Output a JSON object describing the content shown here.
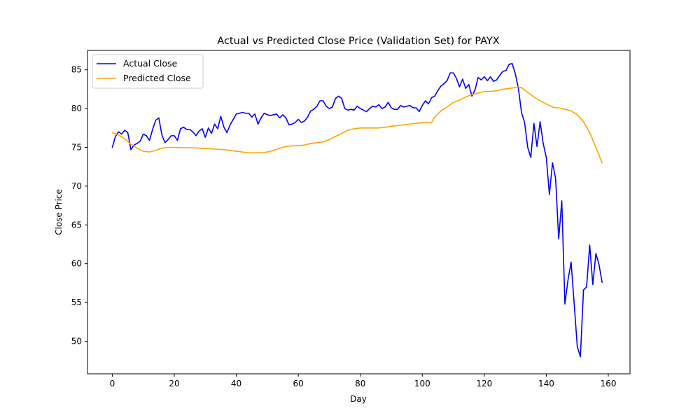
{
  "chart_data": {
    "type": "line",
    "title": "Actual vs Predicted Close Price (Validation Set) for PAYX",
    "xlabel": "Day",
    "ylabel": "Close Price",
    "xlim": [
      -8,
      167
    ],
    "ylim": [
      45.8,
      87.5
    ],
    "xticks": [
      0,
      20,
      40,
      60,
      80,
      100,
      120,
      140,
      160
    ],
    "yticks": [
      50,
      55,
      60,
      65,
      70,
      75,
      80,
      85
    ],
    "grid": false,
    "legend_position": "upper left",
    "series": [
      {
        "name": "Actual Close",
        "color": "#0000ff",
        "x": [
          0,
          1,
          2,
          3,
          4,
          5,
          6,
          7,
          8,
          9,
          10,
          11,
          12,
          13,
          14,
          15,
          16,
          17,
          18,
          19,
          20,
          21,
          22,
          23,
          24,
          25,
          26,
          27,
          28,
          29,
          30,
          31,
          32,
          33,
          34,
          35,
          36,
          37,
          38,
          39,
          40,
          41,
          42,
          43,
          44,
          45,
          46,
          47,
          48,
          49,
          50,
          51,
          52,
          53,
          54,
          55,
          56,
          57,
          58,
          59,
          60,
          61,
          62,
          63,
          64,
          65,
          66,
          67,
          68,
          69,
          70,
          71,
          72,
          73,
          74,
          75,
          76,
          77,
          78,
          79,
          80,
          81,
          82,
          83,
          84,
          85,
          86,
          87,
          88,
          89,
          90,
          91,
          92,
          93,
          94,
          95,
          96,
          97,
          98,
          99,
          100,
          101,
          102,
          103,
          104,
          105,
          106,
          107,
          108,
          109,
          110,
          111,
          112,
          113,
          114,
          115,
          116,
          117,
          118,
          119,
          120,
          121,
          122,
          123,
          124,
          125,
          126,
          127,
          128,
          129,
          130,
          131,
          132,
          133,
          134,
          135,
          136,
          137,
          138,
          139,
          140,
          141,
          142,
          143,
          144,
          145,
          146,
          147,
          148,
          149,
          150,
          151,
          152,
          153,
          154,
          155,
          156,
          157,
          158
        ],
        "y": [
          75.0,
          76.4,
          77.0,
          76.7,
          77.2,
          76.9,
          74.7,
          75.3,
          75.5,
          75.8,
          76.7,
          76.5,
          75.9,
          77.3,
          78.5,
          78.8,
          76.6,
          75.6,
          76.0,
          76.5,
          76.5,
          75.9,
          77.4,
          77.6,
          77.3,
          77.3,
          77.0,
          76.5,
          77.1,
          77.4,
          76.3,
          77.5,
          76.8,
          78.0,
          77.4,
          79.0,
          77.6,
          76.9,
          77.9,
          78.6,
          79.3,
          79.4,
          79.5,
          79.4,
          79.4,
          78.9,
          79.3,
          78.0,
          78.8,
          79.4,
          79.2,
          79.1,
          79.2,
          79.3,
          78.8,
          79.2,
          78.8,
          77.9,
          78.0,
          78.2,
          78.6,
          78.2,
          78.4,
          78.9,
          79.7,
          79.9,
          80.3,
          81.0,
          81.0,
          80.3,
          80.0,
          80.2,
          81.3,
          81.6,
          81.3,
          80.0,
          79.8,
          79.9,
          79.8,
          80.3,
          80.0,
          79.8,
          79.6,
          80.0,
          80.3,
          80.2,
          80.5,
          80.0,
          80.2,
          80.8,
          80.1,
          79.9,
          79.9,
          80.4,
          80.2,
          80.3,
          80.4,
          80.1,
          80.1,
          79.6,
          80.4,
          81.0,
          80.6,
          81.4,
          81.6,
          82.3,
          82.9,
          83.2,
          83.6,
          84.6,
          84.6,
          83.9,
          82.8,
          83.8,
          82.6,
          83.1,
          81.6,
          82.4,
          84.0,
          83.7,
          84.1,
          83.6,
          84.1,
          83.5,
          83.7,
          84.3,
          84.8,
          84.9,
          85.7,
          85.8,
          84.5,
          82.6,
          79.5,
          78.2,
          75.0,
          73.7,
          78.1,
          75.1,
          78.3,
          75.5,
          73.7,
          68.9,
          73.0,
          71.0,
          63.2,
          68.1,
          54.8,
          57.9,
          60.2,
          54.8,
          49.3,
          48.0,
          56.6,
          57.0,
          62.4,
          57.3,
          61.3,
          59.9,
          57.6
        ]
      },
      {
        "name": "Predicted Close",
        "color": "#ffa500",
        "x": [
          0,
          2,
          4,
          6,
          8,
          10,
          12,
          14,
          16,
          18,
          20,
          22,
          24,
          26,
          28,
          30,
          32,
          34,
          36,
          38,
          40,
          42,
          44,
          46,
          48,
          50,
          52,
          54,
          56,
          58,
          60,
          62,
          64,
          66,
          68,
          70,
          72,
          74,
          76,
          78,
          80,
          82,
          84,
          86,
          88,
          90,
          92,
          94,
          96,
          98,
          100,
          102,
          103,
          104,
          106,
          108,
          110,
          112,
          114,
          116,
          118,
          120,
          122,
          124,
          126,
          128,
          130,
          131,
          132,
          134,
          136,
          138,
          140,
          142,
          143,
          144,
          146,
          148,
          150,
          152,
          154,
          156,
          158
        ],
        "y": [
          76.9,
          76.6,
          76.1,
          75.4,
          74.9,
          74.5,
          74.4,
          74.6,
          74.9,
          75.0,
          75.0,
          74.95,
          74.95,
          74.95,
          74.9,
          74.85,
          74.8,
          74.75,
          74.7,
          74.6,
          74.5,
          74.4,
          74.3,
          74.3,
          74.3,
          74.4,
          74.6,
          74.9,
          75.1,
          75.2,
          75.2,
          75.3,
          75.5,
          75.6,
          75.7,
          76.0,
          76.4,
          76.8,
          77.2,
          77.4,
          77.5,
          77.5,
          77.5,
          77.5,
          77.6,
          77.7,
          77.8,
          77.9,
          78.0,
          78.1,
          78.2,
          78.2,
          78.2,
          78.9,
          79.7,
          80.2,
          80.8,
          81.1,
          81.5,
          81.8,
          82.0,
          82.2,
          82.2,
          82.3,
          82.5,
          82.6,
          82.7,
          82.8,
          82.7,
          82.1,
          81.5,
          81.0,
          80.6,
          80.2,
          80.1,
          80.1,
          79.9,
          79.7,
          79.2,
          78.3,
          76.9,
          75.0,
          73.0
        ]
      }
    ]
  }
}
